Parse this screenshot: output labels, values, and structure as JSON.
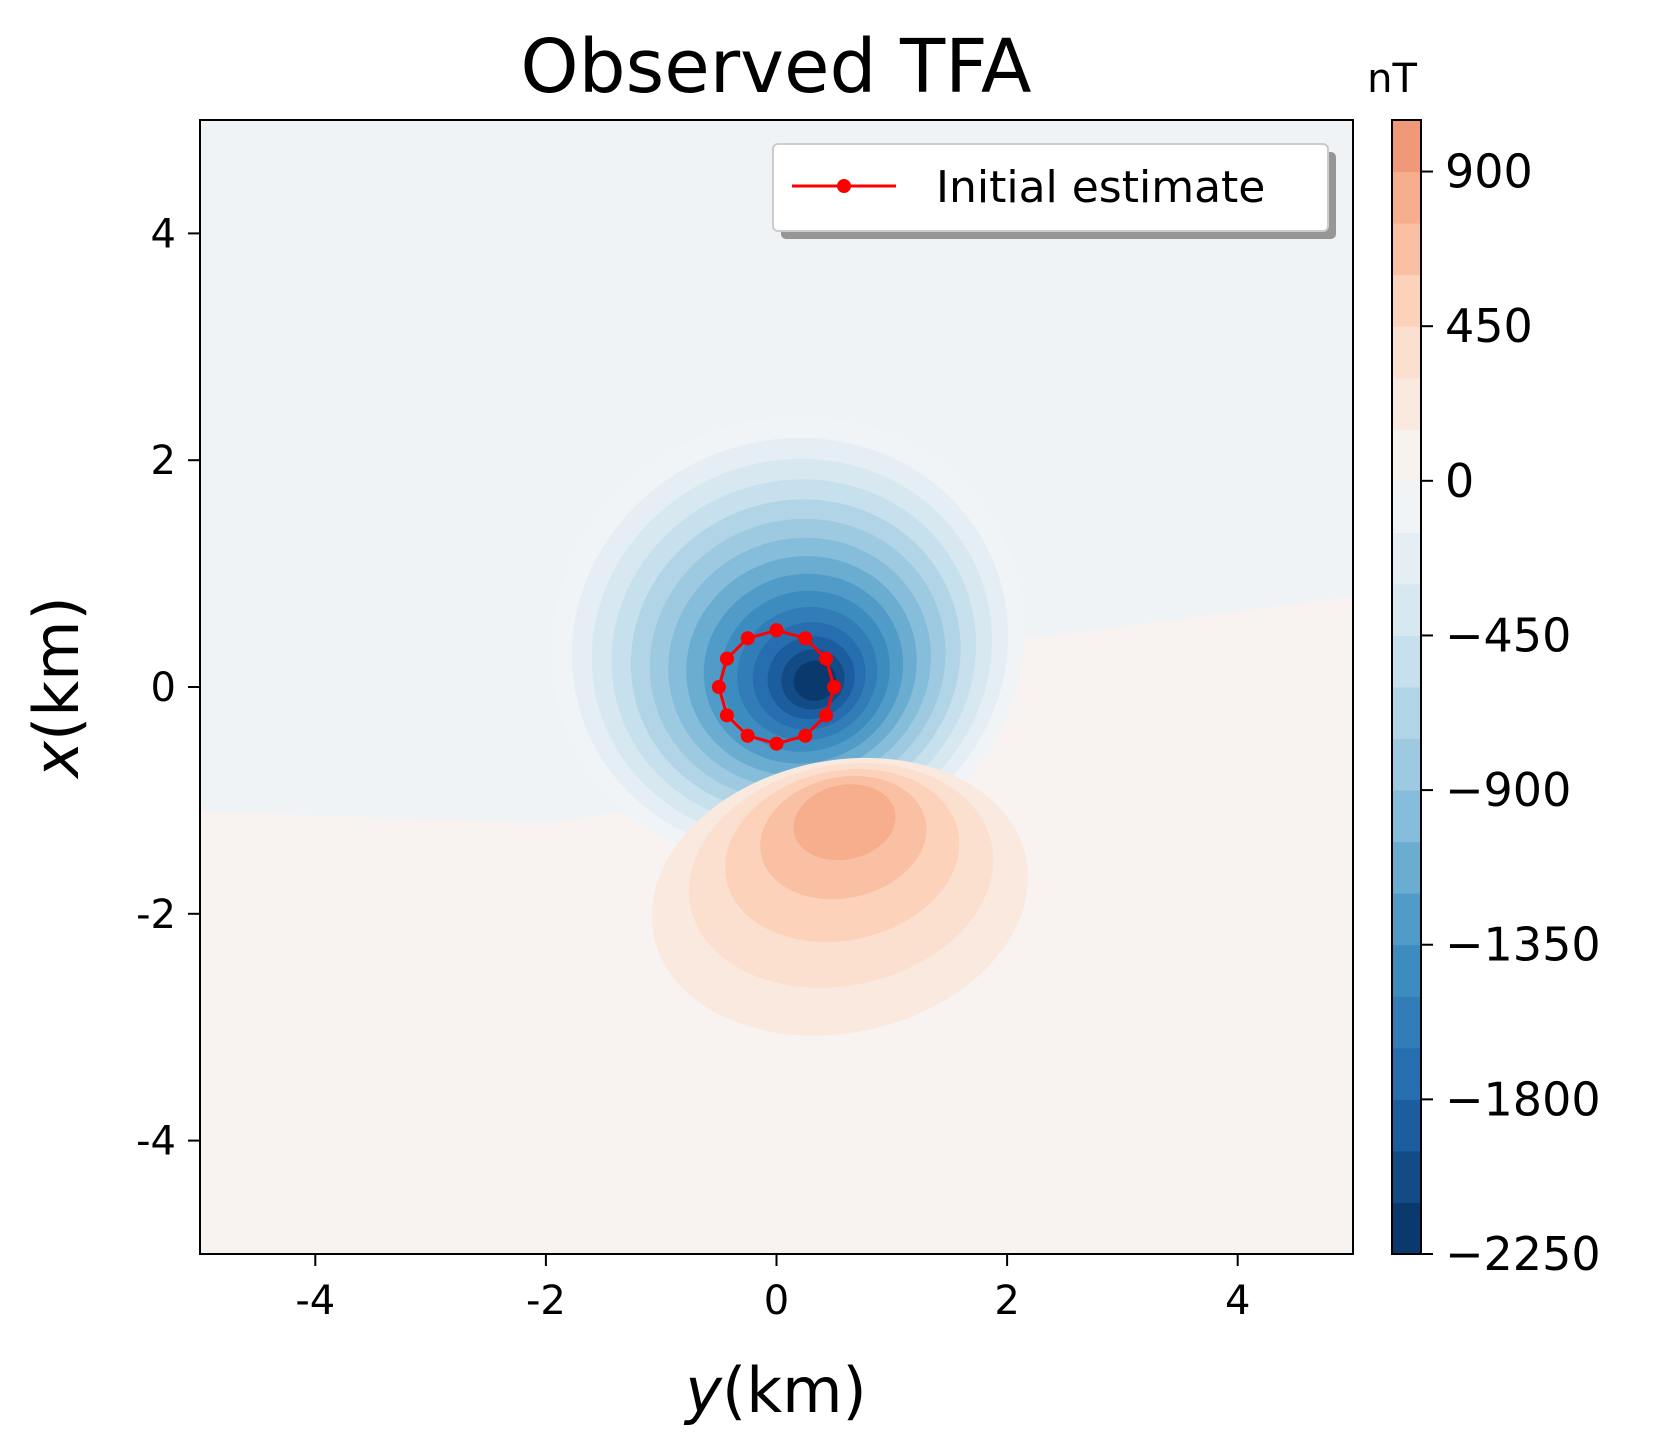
{
  "chart_data": {
    "type": "heatmap",
    "title": "Observed TFA",
    "xlabel_italic": "y",
    "xlabel_rest": "(km)",
    "ylabel_italic": "x",
    "ylabel_rest": "(km)",
    "xlim": [
      -5,
      5
    ],
    "ylim": [
      -5,
      5
    ],
    "x_ticks": [
      -4,
      -2,
      0,
      2,
      4
    ],
    "x_tick_labels": [
      "-4",
      "-2",
      "0",
      "2",
      "4"
    ],
    "y_ticks": [
      4,
      2,
      0,
      -2,
      -4
    ],
    "y_tick_labels": [
      "4",
      "2",
      "0",
      "-2",
      "-4"
    ],
    "grid": false,
    "legend": {
      "placement": "top-right",
      "entries": [
        {
          "label": "Initial estimate",
          "color": "#ff0000",
          "marker": "circle"
        }
      ]
    },
    "colorbar": {
      "unit": "nT",
      "min": -2250,
      "max": 1050,
      "ticks": [
        900,
        450,
        0,
        -450,
        -900,
        -1350,
        -1800,
        -2250
      ],
      "tick_labels": [
        "900",
        "450",
        "0",
        "−450",
        "−900",
        "−1350",
        "−1800",
        "−2250"
      ],
      "colormap": "RdBu_r"
    },
    "anomaly": {
      "negative_lobe": {
        "center_y": 0.1,
        "center_x": 0.05,
        "min_value": -2250
      },
      "positive_lobe": {
        "center_y": 0.6,
        "center_x": -1.1,
        "max_value": 850
      }
    },
    "initial_estimate": {
      "name": "Initial estimate",
      "y": [
        0.0,
        0.25,
        0.43,
        0.5,
        0.43,
        0.25,
        0.0,
        -0.25,
        -0.43,
        -0.5,
        -0.43,
        -0.25,
        0.0
      ],
      "x": [
        0.5,
        0.43,
        0.25,
        0.0,
        -0.25,
        -0.43,
        -0.5,
        -0.43,
        -0.25,
        0.0,
        0.25,
        0.43,
        0.5
      ]
    }
  }
}
